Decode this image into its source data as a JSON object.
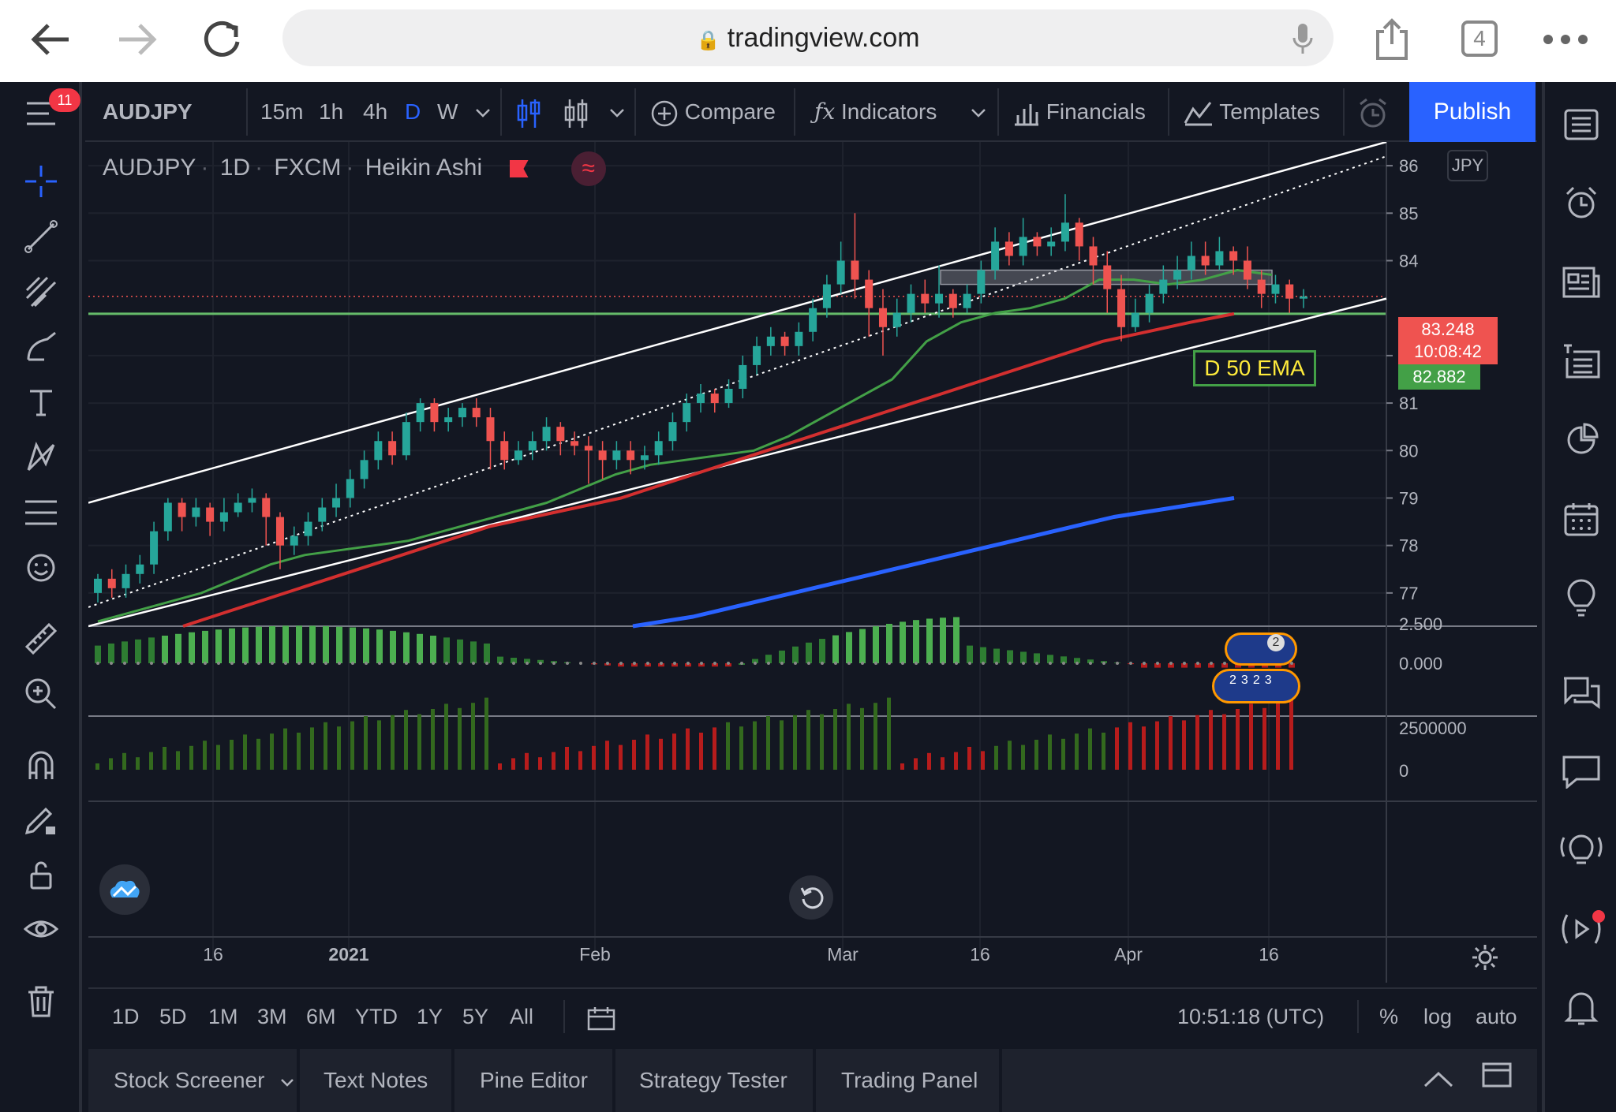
{
  "browser": {
    "url": "tradingview.com",
    "tab_count": "4"
  },
  "toolbar": {
    "symbol": "AUDJPY",
    "intervals": [
      "15m",
      "1h",
      "4h",
      "D",
      "W"
    ],
    "active_interval": "D",
    "compare_label": "Compare",
    "indicators_label": "Indicators",
    "financials_label": "Financials",
    "templates_label": "Templates",
    "publish_label": "Publish",
    "notification_count": "11"
  },
  "legend": {
    "symbol": "AUDJPY",
    "interval": "1D",
    "exchange": "FXCM",
    "chart_style": "Heikin Ashi"
  },
  "price_scale": {
    "currency": "JPY",
    "labels": [
      "86",
      "85",
      "84",
      "82",
      "81",
      "80",
      "79",
      "78",
      "77"
    ],
    "last_price": "83.248",
    "countdown": "10:08:42",
    "ema_price": "82.882",
    "annotation": "D 50 EMA"
  },
  "osc_scale": {
    "labels": [
      "2.500",
      "0.000"
    ]
  },
  "volume_scale": {
    "labels": [
      "2500000",
      "0"
    ]
  },
  "time_axis": {
    "labels": [
      "16",
      "2021",
      "Feb",
      "Mar",
      "16",
      "Apr",
      "16"
    ]
  },
  "event_markers": [
    "2",
    "2",
    "3",
    "2",
    "3"
  ],
  "bottom_bar": {
    "ranges": [
      "1D",
      "5D",
      "1M",
      "3M",
      "6M",
      "YTD",
      "1Y",
      "5Y",
      "All"
    ],
    "clock": "10:51:18 (UTC)",
    "percent": "%",
    "log": "log",
    "auto": "auto"
  },
  "panels": [
    "Stock Screener",
    "Text Notes",
    "Pine Editor",
    "Strategy Tester",
    "Trading Panel"
  ],
  "colors": {
    "bg": "#131722",
    "up": "#26a69a",
    "down": "#ef5350",
    "ema_fast": "#43a047",
    "ema_50": "#d32f2f",
    "ema_200": "#2962ff",
    "hline": "#66bb6a"
  },
  "chart_data": {
    "type": "candlestick",
    "style": "Heikin Ashi",
    "ylim": [
      76.3,
      86.5
    ],
    "xlabels": [
      "16",
      "2021",
      "Feb",
      "Mar",
      "16",
      "Apr",
      "16"
    ],
    "candles": [
      [
        77.0,
        77.3,
        76.8,
        77.4
      ],
      [
        77.3,
        77.1,
        76.9,
        77.5
      ],
      [
        77.1,
        77.4,
        76.9,
        77.6
      ],
      [
        77.4,
        77.6,
        77.2,
        77.8
      ],
      [
        77.6,
        78.3,
        77.4,
        78.5
      ],
      [
        78.3,
        78.9,
        78.1,
        79.0
      ],
      [
        78.9,
        78.6,
        78.3,
        79.0
      ],
      [
        78.6,
        78.8,
        78.4,
        79.0
      ],
      [
        78.8,
        78.5,
        78.2,
        78.9
      ],
      [
        78.5,
        78.7,
        78.3,
        79.0
      ],
      [
        78.7,
        78.9,
        78.6,
        79.1
      ],
      [
        78.9,
        79.0,
        78.7,
        79.2
      ],
      [
        79.0,
        78.6,
        78.0,
        79.1
      ],
      [
        78.6,
        78.0,
        77.5,
        78.7
      ],
      [
        78.0,
        78.2,
        77.8,
        78.4
      ],
      [
        78.2,
        78.5,
        78.0,
        78.7
      ],
      [
        78.5,
        78.8,
        78.3,
        79.0
      ],
      [
        78.8,
        79.0,
        78.6,
        79.3
      ],
      [
        79.0,
        79.4,
        78.8,
        79.6
      ],
      [
        79.4,
        79.8,
        79.2,
        80.0
      ],
      [
        79.8,
        80.2,
        79.6,
        80.4
      ],
      [
        80.2,
        79.9,
        79.7,
        80.4
      ],
      [
        79.9,
        80.6,
        79.8,
        80.8
      ],
      [
        80.6,
        81.0,
        80.4,
        81.1
      ],
      [
        81.0,
        80.6,
        80.4,
        81.1
      ],
      [
        80.6,
        80.7,
        80.4,
        80.9
      ],
      [
        80.7,
        80.9,
        80.5,
        81.0
      ],
      [
        80.9,
        80.7,
        80.5,
        81.1
      ],
      [
        80.7,
        80.2,
        79.6,
        80.9
      ],
      [
        80.2,
        79.8,
        79.6,
        80.4
      ],
      [
        79.8,
        80.0,
        79.7,
        80.2
      ],
      [
        80.0,
        80.2,
        79.8,
        80.4
      ],
      [
        80.2,
        80.5,
        80.0,
        80.7
      ],
      [
        80.5,
        80.2,
        79.9,
        80.6
      ],
      [
        80.2,
        80.1,
        79.9,
        80.4
      ],
      [
        80.1,
        80.0,
        79.3,
        80.3
      ],
      [
        80.0,
        79.8,
        79.4,
        80.2
      ],
      [
        79.8,
        80.0,
        79.6,
        80.2
      ],
      [
        80.0,
        79.8,
        79.5,
        80.2
      ],
      [
        79.8,
        79.9,
        79.6,
        80.1
      ],
      [
        79.9,
        80.2,
        79.7,
        80.4
      ],
      [
        80.2,
        80.6,
        80.0,
        80.8
      ],
      [
        80.6,
        81.0,
        80.4,
        81.2
      ],
      [
        81.0,
        81.2,
        80.8,
        81.4
      ],
      [
        81.2,
        81.0,
        80.8,
        81.3
      ],
      [
        81.0,
        81.3,
        80.9,
        81.5
      ],
      [
        81.3,
        81.8,
        81.1,
        82.0
      ],
      [
        81.8,
        82.2,
        81.6,
        82.4
      ],
      [
        82.2,
        82.4,
        82.0,
        82.6
      ],
      [
        82.4,
        82.2,
        82.0,
        82.5
      ],
      [
        82.2,
        82.5,
        82.0,
        82.7
      ],
      [
        82.5,
        83.0,
        82.3,
        83.2
      ],
      [
        83.0,
        83.5,
        82.8,
        83.7
      ],
      [
        83.5,
        84.0,
        83.3,
        84.4
      ],
      [
        84.0,
        83.6,
        83.2,
        85.0
      ],
      [
        83.6,
        83.0,
        82.4,
        83.8
      ],
      [
        83.0,
        82.6,
        82.0,
        83.4
      ],
      [
        82.6,
        82.9,
        82.4,
        83.2
      ],
      [
        82.9,
        83.3,
        82.7,
        83.5
      ],
      [
        83.3,
        83.1,
        82.9,
        83.6
      ],
      [
        83.1,
        83.3,
        82.8,
        83.9
      ],
      [
        83.3,
        83.0,
        82.8,
        83.4
      ],
      [
        83.0,
        83.3,
        82.9,
        83.5
      ],
      [
        83.3,
        83.8,
        83.1,
        84.0
      ],
      [
        83.8,
        84.4,
        83.6,
        84.7
      ],
      [
        84.4,
        84.1,
        83.9,
        84.6
      ],
      [
        84.1,
        84.5,
        83.9,
        84.9
      ],
      [
        84.5,
        84.3,
        84.1,
        84.6
      ],
      [
        84.3,
        84.4,
        84.1,
        84.7
      ],
      [
        84.4,
        84.8,
        84.2,
        85.4
      ],
      [
        84.8,
        84.3,
        84.0,
        84.9
      ],
      [
        84.3,
        83.9,
        83.5,
        84.5
      ],
      [
        83.9,
        83.4,
        82.9,
        84.2
      ],
      [
        83.4,
        82.6,
        82.3,
        83.7
      ],
      [
        82.6,
        82.9,
        82.5,
        83.2
      ],
      [
        82.9,
        83.3,
        82.7,
        83.5
      ],
      [
        83.3,
        83.6,
        83.1,
        83.9
      ],
      [
        83.6,
        83.8,
        83.4,
        84.1
      ],
      [
        83.8,
        84.1,
        83.6,
        84.4
      ],
      [
        84.1,
        83.9,
        83.7,
        84.4
      ],
      [
        83.9,
        84.2,
        83.8,
        84.5
      ],
      [
        84.2,
        84.0,
        83.7,
        84.3
      ],
      [
        84.0,
        83.6,
        83.4,
        84.3
      ],
      [
        83.6,
        83.3,
        83.0,
        83.8
      ],
      [
        83.3,
        83.5,
        83.1,
        83.7
      ],
      [
        83.5,
        83.2,
        82.9,
        83.6
      ],
      [
        83.2,
        83.248,
        83.0,
        83.4
      ]
    ],
    "ema_fast": [
      76.4,
      76.6,
      76.8,
      77.0,
      77.3,
      77.6,
      77.8,
      77.9,
      78.0,
      78.1,
      78.3,
      78.5,
      78.7,
      78.9,
      79.2,
      79.5,
      79.7,
      79.8,
      79.9,
      80.0,
      80.3,
      80.7,
      81.1,
      81.5,
      82.3,
      82.7,
      82.9,
      83.0,
      83.2,
      83.6,
      83.6,
      83.5,
      83.6,
      83.8,
      83.7
    ],
    "ema_50": [
      76.3,
      76.6,
      76.9,
      77.2,
      77.5,
      77.8,
      78.1,
      78.4,
      78.6,
      78.8,
      79.0,
      79.3,
      79.6,
      79.9,
      80.2,
      80.5,
      80.8,
      81.1,
      81.4,
      81.7,
      82.0,
      82.3,
      82.5,
      82.7,
      82.88
    ],
    "ema_200": [
      76.3,
      76.5,
      76.8,
      77.1,
      77.4,
      77.7,
      78.0,
      78.3,
      78.6,
      78.8,
      79.0
    ],
    "last_price": 83.248,
    "ema_50_value": 82.882,
    "horizontal_line": 82.88,
    "channel_upper": [
      [
        0,
        78.9
      ],
      [
        1,
        86.5
      ]
    ],
    "channel_lower": [
      [
        0,
        76.3
      ],
      [
        1,
        83.2
      ]
    ],
    "channel_mid": [
      [
        0,
        76.7
      ],
      [
        1,
        86.2
      ]
    ],
    "zone": [
      83.5,
      83.8
    ],
    "oscillator_ylim": [
      -0.3,
      3.0
    ],
    "volume_ylim": [
      0,
      3500000
    ]
  }
}
